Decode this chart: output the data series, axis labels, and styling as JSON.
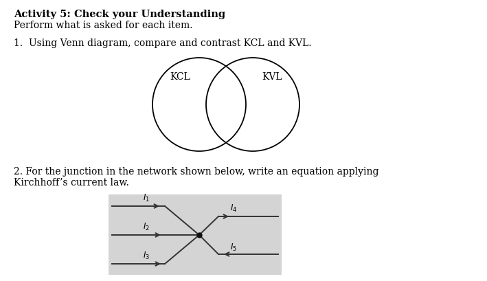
{
  "title_bold": "Activity 5: Check your Understanding",
  "subtitle": "Perform what is asked for each item.",
  "q1_text": "1.  Using Venn diagram, compare and contrast KCL and KVL.",
  "kcl_label": "KCL",
  "kvl_label": "KVL",
  "q2_line1": "2. For the junction in the network shown below, write an equation applying",
  "q2_line2": "Kirchhoff’s current law.",
  "bg_color": "#ffffff",
  "text_color": "#000000",
  "network_bg": "#d4d4d4",
  "network_line_color": "#333333",
  "junction_color": "#111111",
  "font_size_title": 10.5,
  "font_size_body": 10.0,
  "font_size_label": 8.5
}
